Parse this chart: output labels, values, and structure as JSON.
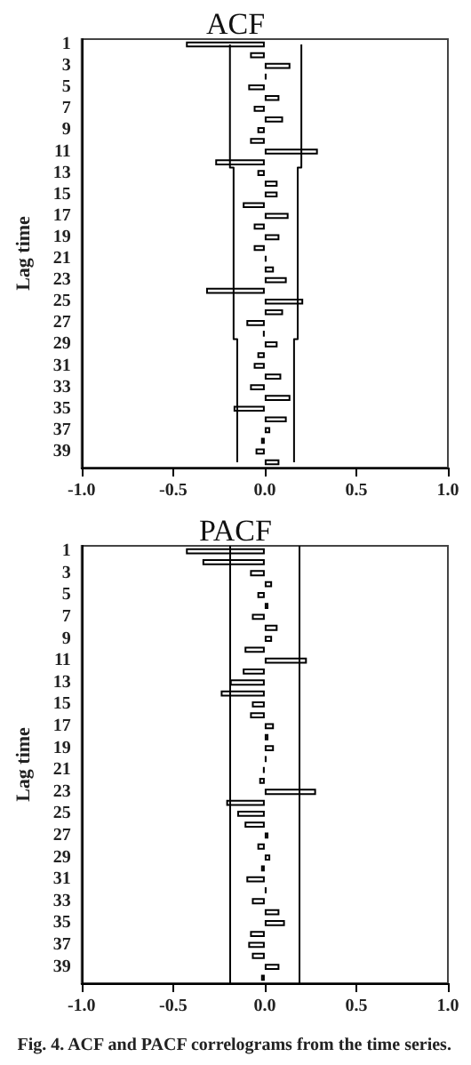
{
  "chart_data": [
    {
      "type": "bar",
      "orientation": "horizontal",
      "title": "ACF",
      "ylabel": "Lag time",
      "categories": [
        "1",
        null,
        "3",
        null,
        "5",
        null,
        "7",
        null,
        "9",
        null,
        "11",
        null,
        "13",
        null,
        "15",
        null,
        "17",
        null,
        "19",
        null,
        "21",
        null,
        "23",
        null,
        "25",
        null,
        "27",
        null,
        "29",
        null,
        "31",
        null,
        "33",
        null,
        "35",
        null,
        "37",
        null,
        "39",
        null
      ],
      "series": [
        {
          "color": "#ffffff",
          "values": [
            -0.43,
            -0.08,
            0.14,
            0.01,
            -0.09,
            0.08,
            -0.06,
            0.1,
            -0.04,
            -0.08,
            0.29,
            -0.27,
            -0.04,
            0.07,
            0.07,
            -0.12,
            0.13,
            -0.06,
            0.08,
            -0.06,
            0.01,
            0.05,
            0.12,
            -0.32,
            0.21,
            0.1,
            -0.1,
            -0.01,
            0.07,
            -0.04,
            -0.06,
            0.09,
            -0.08,
            0.14,
            -0.17,
            0.12,
            0.03,
            -0.02,
            -0.05,
            0.08
          ]
        },
        {
          "type": "step",
          "color": "#000000",
          "values": [
            -0.19,
            -0.19,
            -0.19,
            -0.19,
            -0.19,
            -0.19,
            -0.19,
            -0.19,
            -0.19,
            -0.19,
            -0.19,
            -0.19,
            -0.17,
            -0.17,
            -0.17,
            -0.17,
            -0.17,
            -0.17,
            -0.17,
            -0.17,
            -0.17,
            -0.17,
            -0.17,
            -0.17,
            -0.17,
            -0.17,
            -0.17,
            -0.17,
            -0.15,
            -0.15,
            -0.15,
            -0.15,
            -0.15,
            -0.15,
            -0.15,
            -0.15,
            -0.15,
            -0.15,
            -0.15,
            -0.15
          ]
        },
        {
          "type": "step",
          "color": "#000000",
          "values": [
            0.2,
            0.2,
            0.2,
            0.2,
            0.2,
            0.2,
            0.2,
            0.2,
            0.2,
            0.2,
            0.2,
            0.2,
            0.18,
            0.18,
            0.18,
            0.18,
            0.18,
            0.18,
            0.18,
            0.18,
            0.18,
            0.18,
            0.18,
            0.18,
            0.18,
            0.18,
            0.18,
            0.18,
            0.16,
            0.16,
            0.16,
            0.16,
            0.16,
            0.16,
            0.16,
            0.16,
            0.16,
            0.16,
            0.16,
            0.16
          ]
        }
      ],
      "xlim": [
        -1,
        1
      ],
      "xticks": [
        {
          "value": -1,
          "label": "-1.0"
        },
        {
          "value": -0.5,
          "label": "-0.5"
        },
        {
          "value": 0,
          "label": "0.0"
        },
        {
          "value": 0.5,
          "label": "0.5"
        },
        {
          "value": 1,
          "label": "1.0"
        }
      ],
      "grid": false,
      "marker": "none"
    },
    {
      "type": "bar",
      "orientation": "horizontal",
      "title": "PACF",
      "ylabel": "Lag time",
      "categories": [
        "1",
        null,
        "3",
        null,
        "5",
        null,
        "7",
        null,
        "9",
        null,
        "11",
        null,
        "13",
        null,
        "15",
        null,
        "17",
        null,
        "19",
        null,
        "21",
        null,
        "23",
        null,
        "25",
        null,
        "27",
        null,
        "29",
        null,
        "31",
        null,
        "33",
        null,
        "35",
        null,
        "37",
        null,
        "39",
        null
      ],
      "series": [
        {
          "color": "#ffffff",
          "values": [
            -0.43,
            -0.34,
            -0.08,
            0.04,
            -0.04,
            0.02,
            -0.07,
            0.07,
            0.04,
            -0.11,
            0.23,
            -0.12,
            -0.19,
            -0.24,
            -0.07,
            -0.08,
            0.05,
            0.02,
            0.05,
            0.01,
            -0.01,
            -0.03,
            0.28,
            -0.21,
            -0.15,
            -0.11,
            0.02,
            -0.04,
            0.03,
            -0.02,
            -0.1,
            0.01,
            -0.07,
            0.08,
            0.11,
            -0.08,
            -0.09,
            -0.07,
            0.08,
            -0.02
          ]
        }
      ],
      "ref_lines": [
        {
          "axis": "x",
          "value": -0.19,
          "color": "#000000"
        },
        {
          "axis": "x",
          "value": 0.19,
          "color": "#000000"
        }
      ],
      "xlim": [
        -1,
        1
      ],
      "xticks": [
        {
          "value": -1,
          "label": "-1.0"
        },
        {
          "value": -0.5,
          "label": "-0.5"
        },
        {
          "value": 0,
          "label": "0.0"
        },
        {
          "value": 0.5,
          "label": "0.5"
        },
        {
          "value": 1,
          "label": "1.0"
        }
      ],
      "grid": false,
      "annotations": [
        "Fig. 4. ACF and PACF correlograms from the time series."
      ]
    }
  ]
}
